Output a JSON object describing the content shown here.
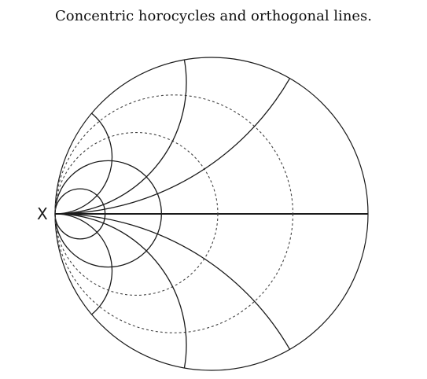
{
  "caption": "Concentric horocycles and orthogonal lines.",
  "point_label": "X",
  "colors": {
    "ink": "#1a1a1a",
    "dashed_ink": "#444444",
    "background": "#ffffff"
  },
  "diagram": {
    "horocycles": [
      {
        "name": "horocycle-1",
        "ratio": 0.16,
        "style": "solid"
      },
      {
        "name": "horocycle-2",
        "ratio": 0.34,
        "style": "solid"
      },
      {
        "name": "horocycle-3",
        "ratio": 0.52,
        "style": "dashed"
      },
      {
        "name": "horocycle-4",
        "ratio": 0.76,
        "style": "dashed"
      }
    ],
    "orthogonal_lines": [
      {
        "name": "orthogonal-line-1",
        "direction_deg": 60
      },
      {
        "name": "orthogonal-line-2",
        "direction_deg": 40
      },
      {
        "name": "orthogonal-line-3",
        "direction_deg": 20
      },
      {
        "name": "orthogonal-line-4",
        "direction_deg": -20
      },
      {
        "name": "orthogonal-line-5",
        "direction_deg": -40
      },
      {
        "name": "orthogonal-line-6",
        "direction_deg": -60
      }
    ]
  }
}
